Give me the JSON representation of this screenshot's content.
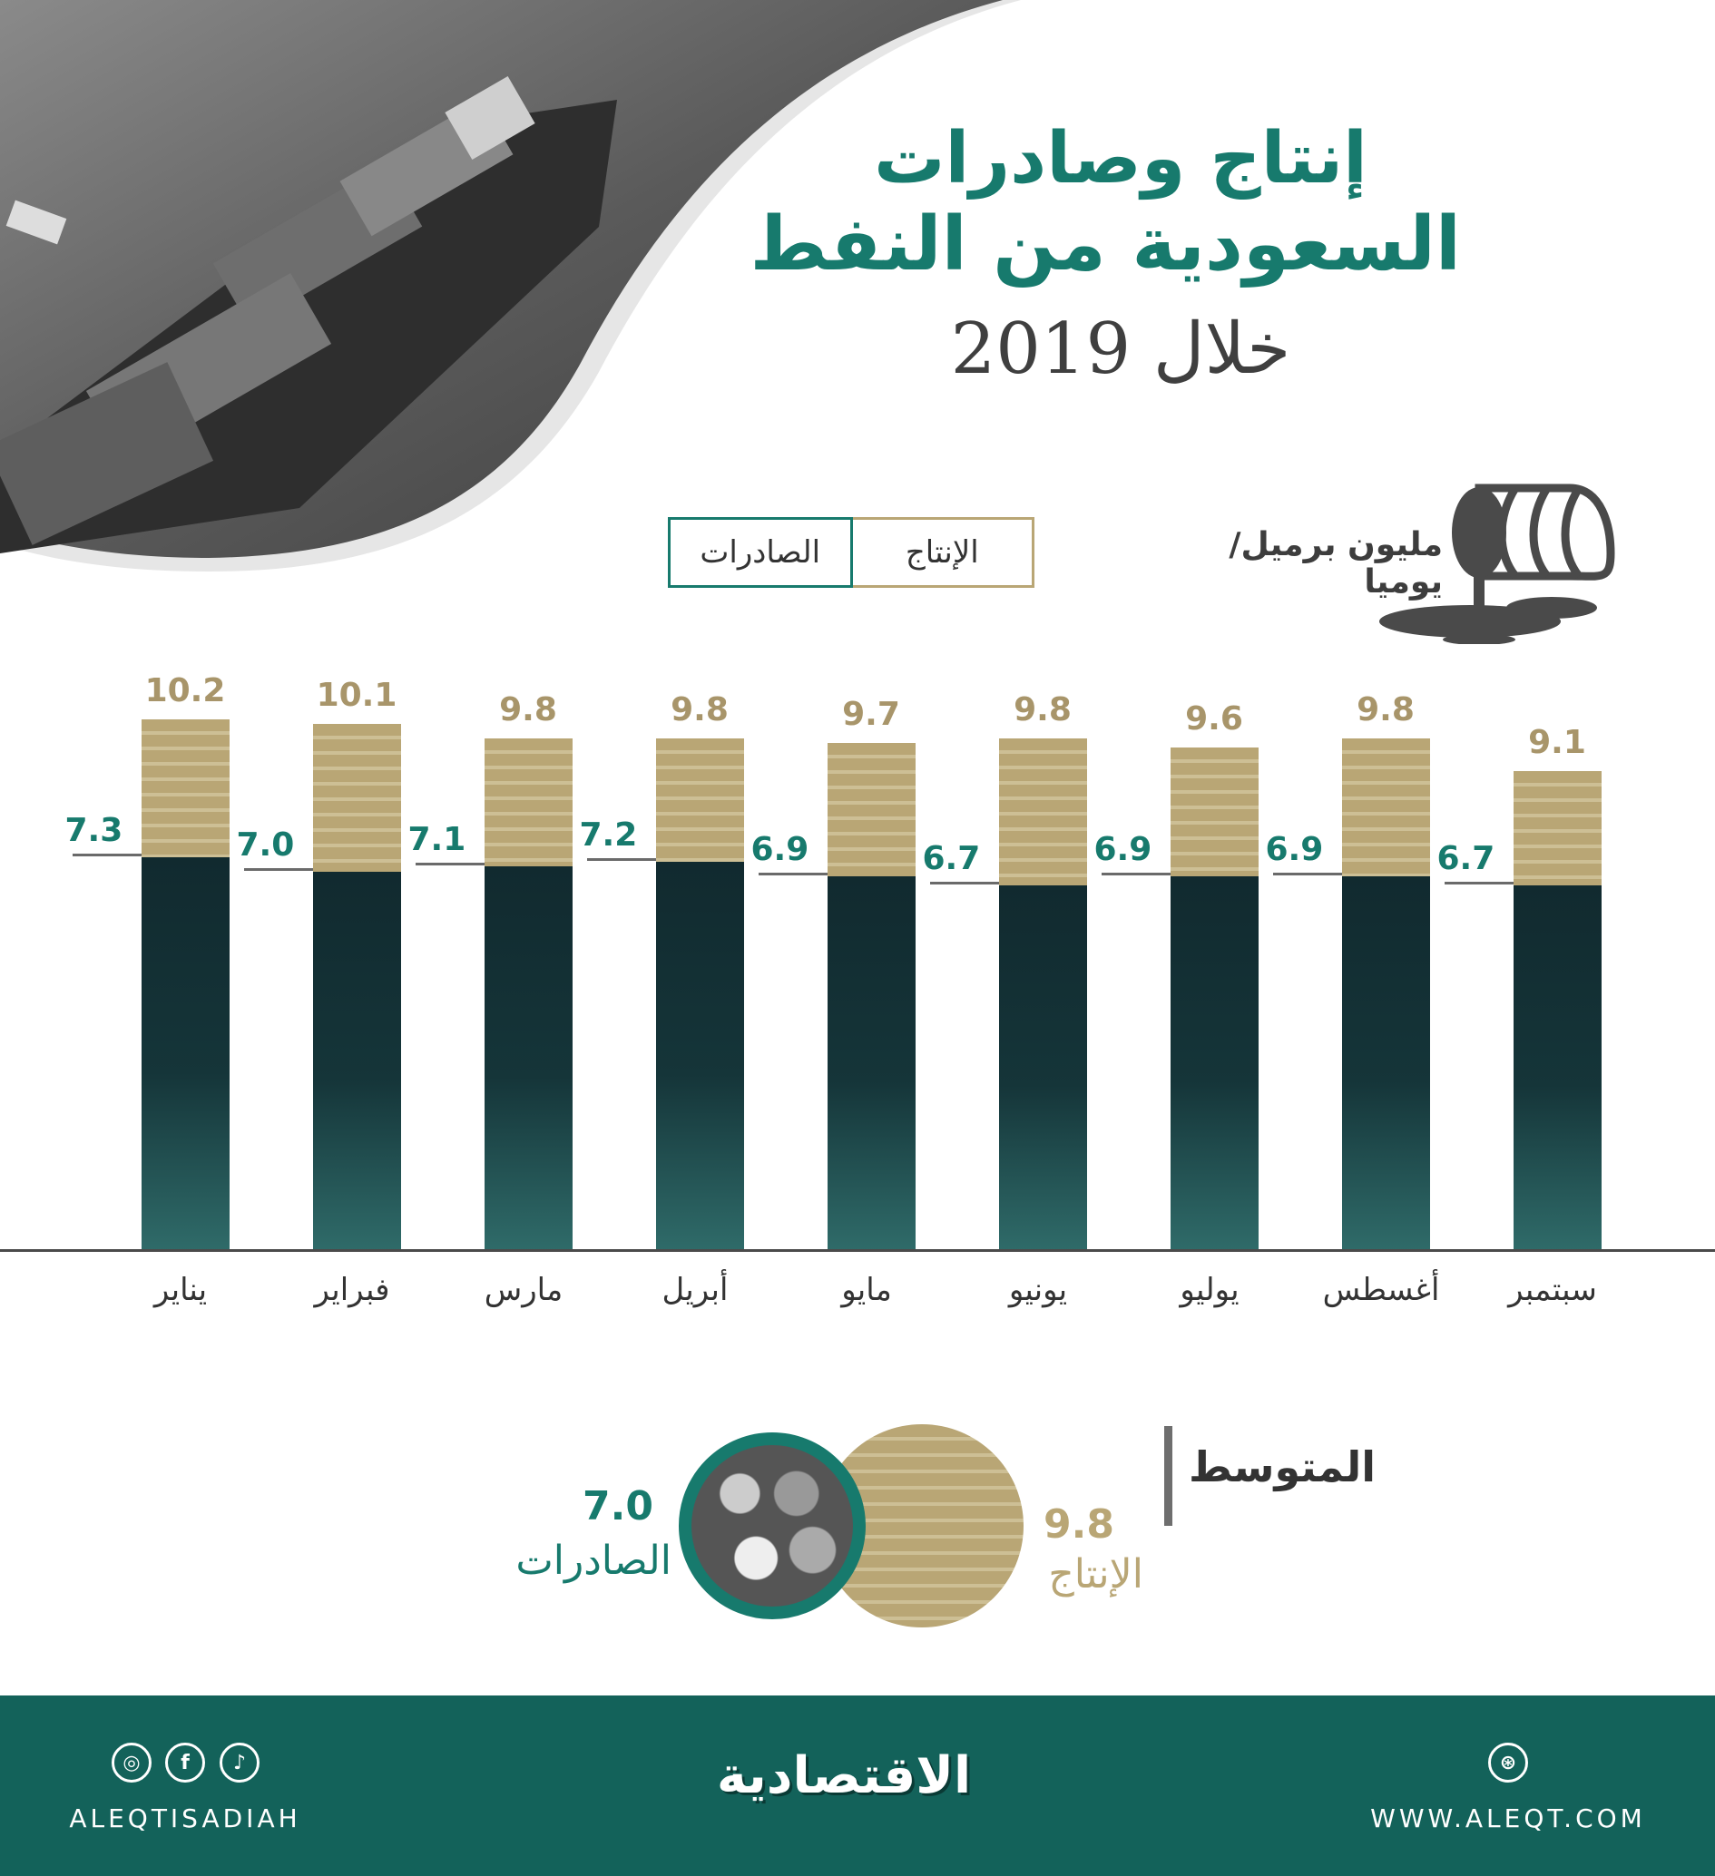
{
  "title": {
    "line1": "إنتاج وصادرات",
    "line2": "السعودية من النفط",
    "line3": "خلال 2019"
  },
  "legend": {
    "exports": "الصادرات",
    "production": "الإنتاج"
  },
  "unit": "مليون برميل/يوميا",
  "colors": {
    "teal": "#177a6d",
    "tan": "#b9a675",
    "footer": "#13625a"
  },
  "chart_data": {
    "type": "bar",
    "categories": [
      "يناير",
      "فبراير",
      "مارس",
      "أبريل",
      "مايو",
      "يونيو",
      "يوليو",
      "أغسطس",
      "سبتمبر"
    ],
    "series": [
      {
        "name": "الإنتاج",
        "values": [
          10.2,
          10.1,
          9.8,
          9.8,
          9.7,
          9.8,
          9.6,
          9.8,
          9.1
        ],
        "labels": [
          "10.2",
          "10.1",
          "9.8",
          "9.8",
          "9.7",
          "9.8",
          "9.6",
          "9.8",
          "9.1"
        ]
      },
      {
        "name": "الصادرات",
        "values": [
          7.3,
          7.0,
          7.1,
          7.2,
          6.9,
          6.7,
          6.9,
          6.9,
          6.7
        ],
        "labels": [
          "7.3",
          "7.0",
          "7.1",
          "7.2",
          "6.9",
          "6.7",
          "6.9",
          "6.9",
          "6.7"
        ]
      }
    ],
    "title": "إنتاج وصادرات السعودية من النفط خلال 2019",
    "ylabel": "مليون برميل/يوميا",
    "legend": "top-center",
    "grid": false
  },
  "average": {
    "title": "المتوسط",
    "exports_value": "7.0",
    "exports_label": "الصادرات",
    "production_value": "9.8",
    "production_label": "الإنتاج"
  },
  "footer": {
    "social_handle": "ALEQTISADIAH",
    "logo": "الاقتصادية",
    "website": "WWW.ALEQT.COM",
    "icons": [
      "instagram-icon",
      "facebook-icon",
      "twitter-icon",
      "dribbble-icon"
    ]
  }
}
